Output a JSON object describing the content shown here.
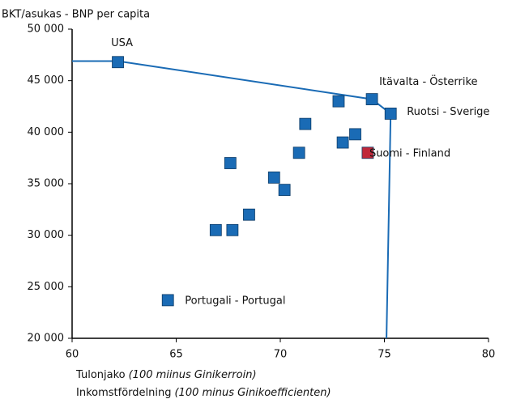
{
  "chart_data": {
    "type": "scatter",
    "ylabel": "BKT/asukas - BNP per capita",
    "xlabel": [
      {
        "plain": "Tulonjako",
        "italic": "(100 miinus Ginikerroin)"
      },
      {
        "plain": "Inkomstfördelning",
        "italic": "(100 minus Ginikoefficienten)"
      }
    ],
    "xlim": [
      60,
      80
    ],
    "ylim": [
      20000,
      50000
    ],
    "xticks": [
      60,
      65,
      70,
      75,
      80
    ],
    "yticks": [
      {
        "value": 20000,
        "label": "20 000"
      },
      {
        "value": 25000,
        "label": "25 000"
      },
      {
        "value": 30000,
        "label": "30 000"
      },
      {
        "value": 35000,
        "label": "35 000"
      },
      {
        "value": 40000,
        "label": "40 000"
      },
      {
        "value": 45000,
        "label": "45 000"
      },
      {
        "value": 50000,
        "label": "50 000"
      }
    ],
    "series": [
      {
        "type": "line",
        "color": "#1a6bb5",
        "x": [
          60,
          62.2,
          74.4,
          75.3,
          75.1
        ],
        "values": [
          46900,
          46900,
          43200,
          41800,
          20000
        ]
      },
      {
        "type": "scatter",
        "color": "#1a6bb5",
        "x": [
          62.2,
          74.4,
          75.3,
          64.6,
          72.8,
          71.2,
          73.6,
          73.0,
          70.9,
          67.6,
          69.7,
          70.2,
          68.5,
          66.9,
          67.7
        ],
        "values": [
          46800,
          43200,
          41800,
          23700,
          43000,
          40800,
          39800,
          39000,
          38000,
          37000,
          35600,
          34400,
          32000,
          30500,
          30500
        ],
        "labels": [
          "USA",
          "Itävalta - Österrike",
          "Ruotsi - Sverige",
          "Portugali - Portugal",
          null,
          null,
          null,
          null,
          null,
          null,
          null,
          null,
          null,
          null,
          null
        ]
      },
      {
        "type": "scatter",
        "color": "#c0283a",
        "x": [
          74.2
        ],
        "values": [
          38000
        ],
        "labels": [
          "Suomi - Finland"
        ]
      }
    ]
  }
}
